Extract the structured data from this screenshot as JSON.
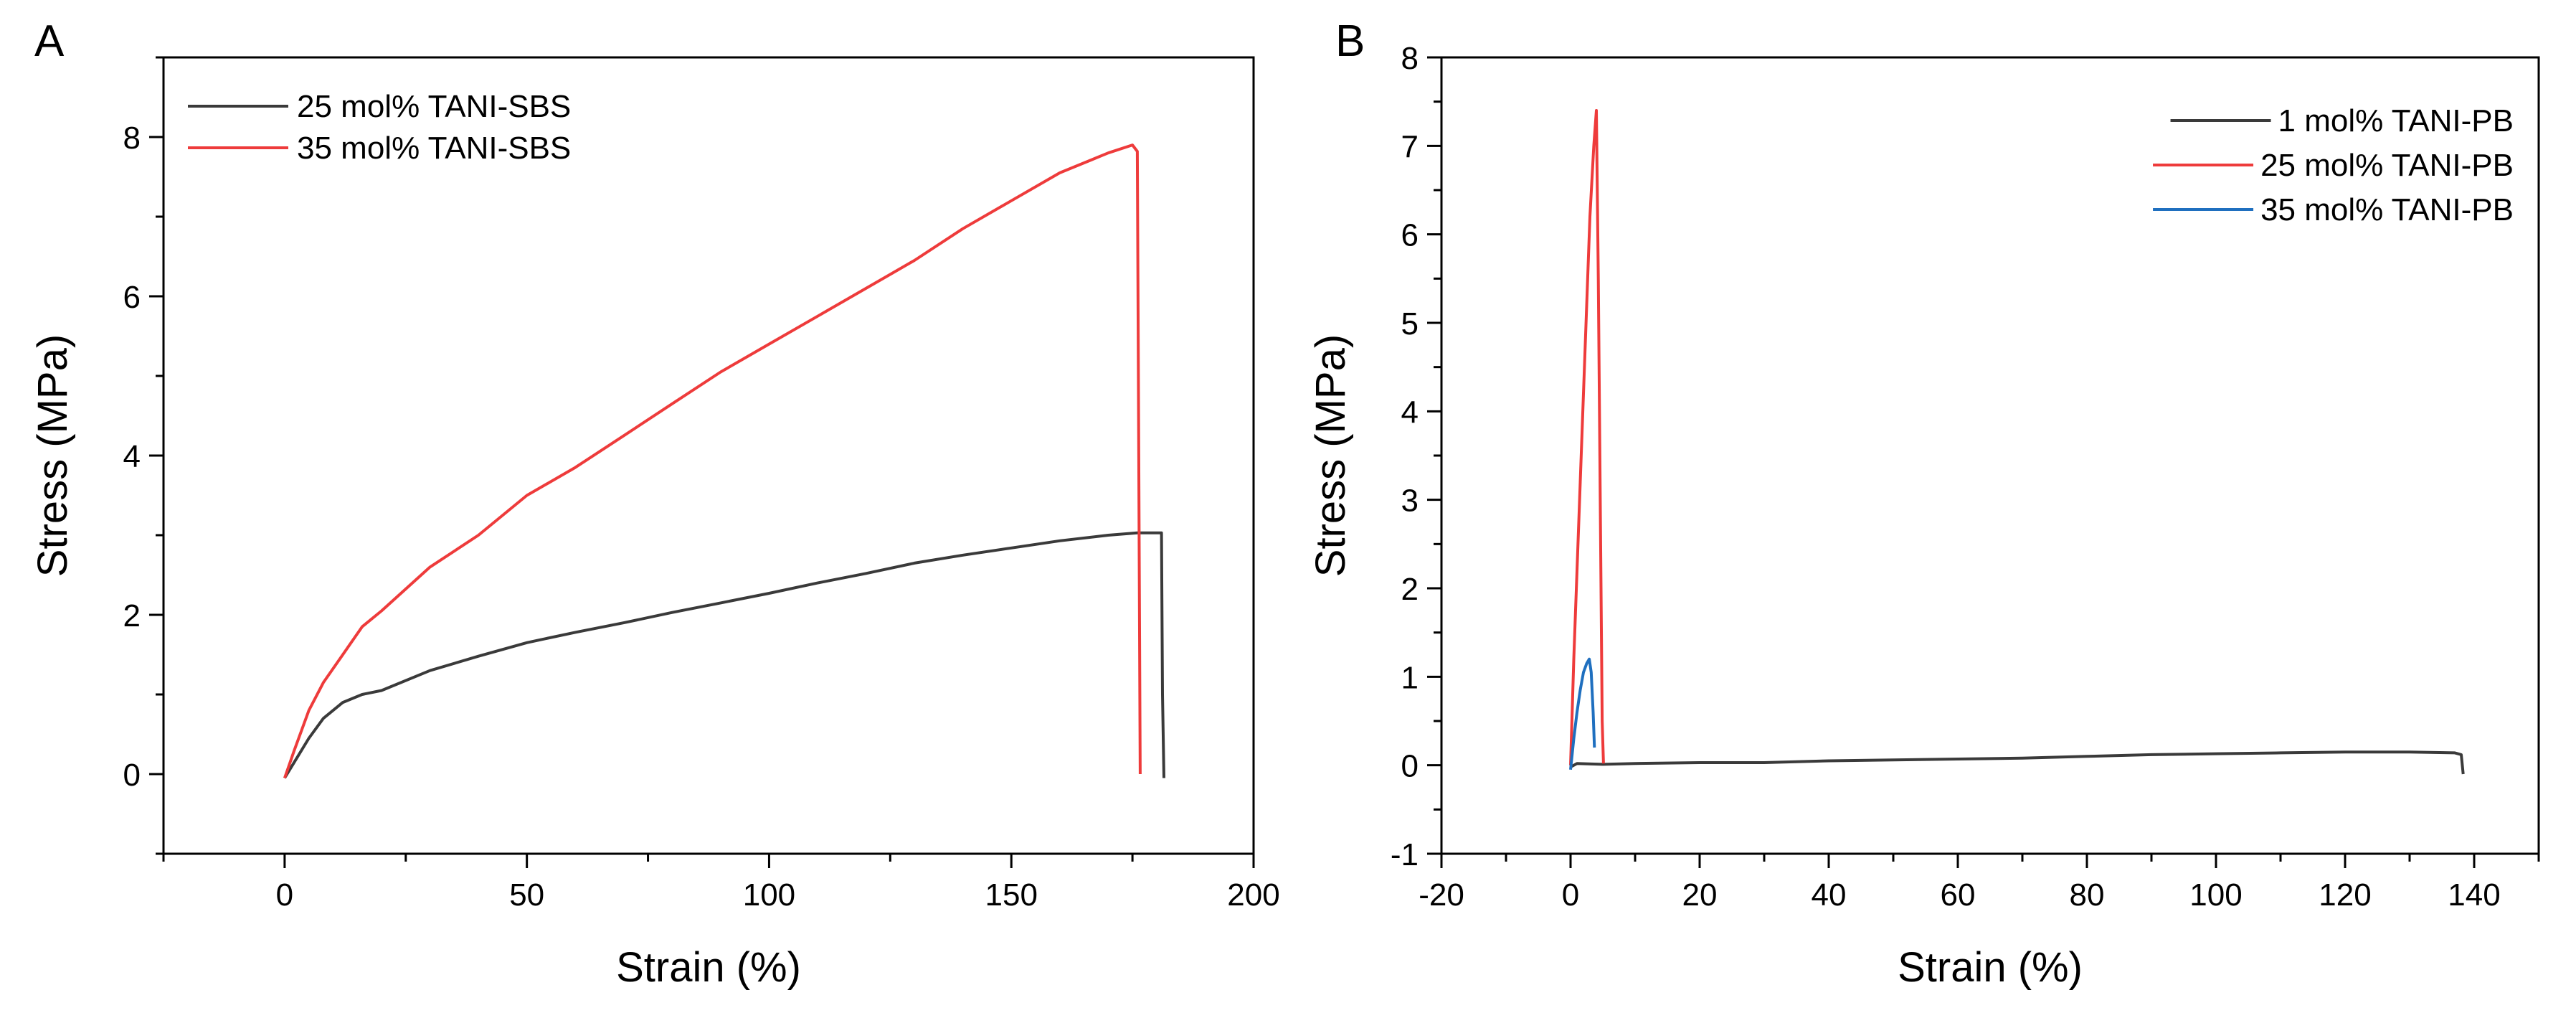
{
  "chart_data": [
    {
      "panel": "A",
      "type": "line",
      "title": "",
      "xlabel": "Strain (%)",
      "ylabel": "Stress (MPa)",
      "xlim": [
        -25,
        200
      ],
      "ylim": [
        -1,
        9
      ],
      "xticks": [
        0,
        50,
        100,
        150,
        200
      ],
      "yticks": [
        0,
        2,
        4,
        6,
        8
      ],
      "xtick_labels": [
        "0",
        "50",
        "100",
        "150",
        "200"
      ],
      "ytick_labels": [
        "0",
        "2",
        "4",
        "6",
        "8"
      ],
      "legend_position": "top-left",
      "series": [
        {
          "name": "25 mol% TANI-SBS",
          "color": "#3a3a3a",
          "points": [
            [
              0,
              -0.05
            ],
            [
              2,
              0.15
            ],
            [
              5,
              0.45
            ],
            [
              8,
              0.7
            ],
            [
              12,
              0.9
            ],
            [
              16,
              1.0
            ],
            [
              20,
              1.05
            ],
            [
              30,
              1.3
            ],
            [
              40,
              1.48
            ],
            [
              50,
              1.65
            ],
            [
              60,
              1.78
            ],
            [
              70,
              1.9
            ],
            [
              80,
              2.03
            ],
            [
              90,
              2.15
            ],
            [
              100,
              2.27
            ],
            [
              110,
              2.4
            ],
            [
              120,
              2.52
            ],
            [
              130,
              2.65
            ],
            [
              140,
              2.75
            ],
            [
              150,
              2.84
            ],
            [
              160,
              2.93
            ],
            [
              170,
              3.0
            ],
            [
              176,
              3.03
            ],
            [
              181,
              3.03
            ],
            [
              181.2,
              1.0
            ],
            [
              181.5,
              -0.05
            ]
          ]
        },
        {
          "name": "35 mol% TANI-SBS",
          "color": "#ee3b3b",
          "points": [
            [
              0,
              -0.05
            ],
            [
              2,
              0.3
            ],
            [
              5,
              0.8
            ],
            [
              8,
              1.15
            ],
            [
              12,
              1.5
            ],
            [
              16,
              1.85
            ],
            [
              20,
              2.05
            ],
            [
              30,
              2.6
            ],
            [
              40,
              3.0
            ],
            [
              50,
              3.5
            ],
            [
              60,
              3.85
            ],
            [
              70,
              4.25
            ],
            [
              80,
              4.65
            ],
            [
              90,
              5.05
            ],
            [
              100,
              5.4
            ],
            [
              110,
              5.75
            ],
            [
              120,
              6.1
            ],
            [
              130,
              6.45
            ],
            [
              140,
              6.85
            ],
            [
              150,
              7.2
            ],
            [
              160,
              7.55
            ],
            [
              170,
              7.8
            ],
            [
              175,
              7.9
            ],
            [
              176,
              7.82
            ],
            [
              176.3,
              4.0
            ],
            [
              176.6,
              0.0
            ]
          ]
        }
      ]
    },
    {
      "panel": "B",
      "type": "line",
      "title": "",
      "xlabel": "Strain (%)",
      "ylabel": "Stress (MPa)",
      "xlim": [
        -20,
        150
      ],
      "ylim": [
        -1,
        8
      ],
      "xticks": [
        -20,
        0,
        20,
        40,
        60,
        80,
        100,
        120,
        140
      ],
      "yticks": [
        -1,
        0,
        1,
        2,
        3,
        4,
        5,
        6,
        7,
        8
      ],
      "xtick_labels": [
        "-20",
        "0",
        "20",
        "40",
        "60",
        "80",
        "100",
        "120",
        "140"
      ],
      "ytick_labels": [
        "-1",
        "0",
        "1",
        "2",
        "3",
        "4",
        "5",
        "6",
        "7",
        "8"
      ],
      "legend_position": "top-right",
      "series": [
        {
          "name": "1 mol% TANI-PB",
          "color": "#3a3a3a",
          "points": [
            [
              0,
              -0.02
            ],
            [
              1,
              0.02
            ],
            [
              5,
              0.01
            ],
            [
              10,
              0.02
            ],
            [
              20,
              0.03
            ],
            [
              30,
              0.03
            ],
            [
              40,
              0.05
            ],
            [
              50,
              0.06
            ],
            [
              60,
              0.07
            ],
            [
              70,
              0.08
            ],
            [
              80,
              0.1
            ],
            [
              90,
              0.12
            ],
            [
              100,
              0.13
            ],
            [
              110,
              0.14
            ],
            [
              120,
              0.15
            ],
            [
              130,
              0.15
            ],
            [
              137,
              0.14
            ],
            [
              138,
              0.12
            ],
            [
              138.3,
              -0.1
            ]
          ]
        },
        {
          "name": "25 mol% TANI-PB",
          "color": "#ee3b3b",
          "points": [
            [
              0,
              0.0
            ],
            [
              0.5,
              1.2
            ],
            [
              1,
              2.2
            ],
            [
              1.5,
              3.2
            ],
            [
              2,
              4.2
            ],
            [
              2.5,
              5.2
            ],
            [
              3,
              6.2
            ],
            [
              3.6,
              7.0
            ],
            [
              4,
              7.4
            ],
            [
              4.3,
              5.5
            ],
            [
              4.6,
              3.0
            ],
            [
              4.9,
              0.5
            ],
            [
              5.1,
              0.02
            ]
          ]
        },
        {
          "name": "35 mol% TANI-PB",
          "color": "#1f6fbf",
          "points": [
            [
              0,
              -0.05
            ],
            [
              0.5,
              0.3
            ],
            [
              1,
              0.6
            ],
            [
              1.5,
              0.85
            ],
            [
              2,
              1.05
            ],
            [
              2.5,
              1.15
            ],
            [
              2.9,
              1.2
            ],
            [
              3.2,
              1.05
            ],
            [
              3.5,
              0.6
            ],
            [
              3.7,
              0.2
            ]
          ]
        }
      ]
    }
  ]
}
